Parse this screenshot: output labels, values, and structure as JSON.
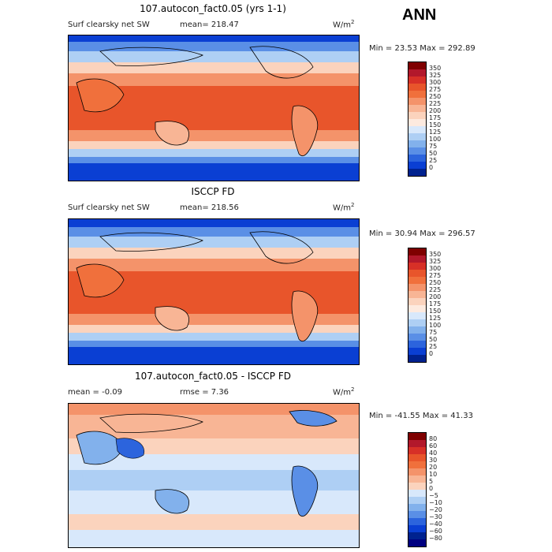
{
  "annotation": "ANN",
  "panels": [
    {
      "title": "107.autocon_fact0.05 (yrs 1-1)",
      "left_label": "Surf clearsky net SW",
      "mid_label": "mean= 218.47",
      "units": "W/m",
      "units_sup": "2",
      "minmax": "Min =  23.53 Max = 292.89",
      "colorbar_labels": [
        "350",
        "325",
        "300",
        "275",
        "250",
        "225",
        "200",
        "175",
        "150",
        "125",
        "100",
        "75",
        "50",
        "25",
        "0"
      ]
    },
    {
      "title": "ISCCP FD",
      "left_label": "Surf clearsky net SW",
      "mid_label": "mean= 218.56",
      "units": "W/m",
      "units_sup": "2",
      "minmax": "Min =  30.94 Max = 296.57",
      "colorbar_labels": [
        "350",
        "325",
        "300",
        "275",
        "250",
        "225",
        "200",
        "175",
        "150",
        "125",
        "100",
        "75",
        "50",
        "25",
        "0"
      ]
    },
    {
      "title": "107.autocon_fact0.05 - ISCCP FD",
      "left_label": "mean =  -0.09",
      "mid_label": "rmse =   7.36",
      "units": "W/m",
      "units_sup": "2",
      "minmax": "Min = -41.55 Max =  41.33",
      "colorbar_labels": [
        "80",
        "60",
        "40",
        "30",
        "20",
        "10",
        "5",
        "0",
        "−5",
        "−10",
        "−20",
        "−30",
        "−40",
        "−60",
        "−80"
      ]
    }
  ],
  "colors": {
    "abs_scale": [
      "#7f0000",
      "#b2182b",
      "#d73027",
      "#e8552b",
      "#f0703c",
      "#f4936a",
      "#f8b595",
      "#fbd3bd",
      "#fdeadf",
      "#d8e8fb",
      "#aecff4",
      "#82b1ec",
      "#5a8fe6",
      "#2c64dd",
      "#0a3fd3",
      "#00228f"
    ],
    "diff_scale": [
      "#7f0000",
      "#b2182b",
      "#d73027",
      "#e8552b",
      "#f0703c",
      "#f4936a",
      "#f8b595",
      "#fbd3bd",
      "#d8e8fb",
      "#aecff4",
      "#82b1ec",
      "#5a8fe6",
      "#2c64dd",
      "#0a3fd3",
      "#00228f",
      "#000080"
    ]
  }
}
